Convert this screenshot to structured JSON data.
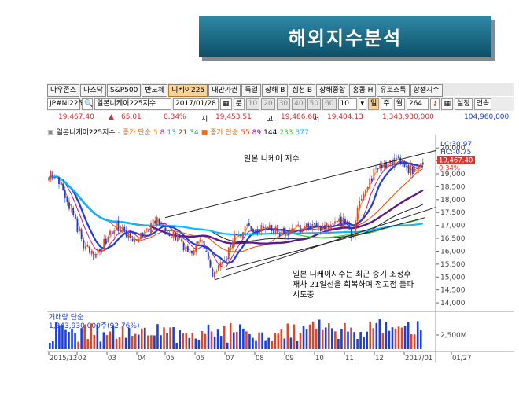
{
  "slide_title": "해외지수분석",
  "tabs": [
    "다우존스",
    "나스닥",
    "S&P500",
    "반도체",
    "니케이225",
    "대만가권",
    "독일",
    "상해 B",
    "심천 B",
    "상해종합",
    "홍콩 H",
    "유로스톡",
    "항셍지수"
  ],
  "active_tab": 4,
  "toolbar": {
    "symbol": "JP#NI225",
    "name": "일본니케이225지수",
    "date": "2017/01/28",
    "unit_label": "분",
    "intervals": [
      "10",
      "20",
      "30",
      "40",
      "50",
      "60"
    ],
    "count": "10",
    "period_day": "일",
    "period_week": "주",
    "period_month": "월",
    "bars": "264",
    "settings": "설정",
    "continuous": "연속"
  },
  "quote": {
    "price": "19,467.40",
    "change": "65.01",
    "change_pct": "0.34%",
    "open_label": "시",
    "open": "19,453.51",
    "high_label": "고",
    "high": "19,486.68",
    "low_label": "저",
    "low": "19,404.13",
    "volume": "1,343,930,000",
    "volume_right": "104,960,000"
  },
  "legend": {
    "name": "일본니케이225지수",
    "ma_short_label": "종가 단순",
    "ma_short": [
      "5",
      "8",
      "13",
      "21",
      "34"
    ],
    "ma_long_label": "종가 단순",
    "ma_long": [
      "55",
      "89",
      "144",
      "233",
      "377"
    ]
  },
  "annotations": {
    "top": "일본 니케이 지수",
    "bottom_lines": [
      "일본 니케이지수는 최근 중기 조정후",
      "재차 21일선을 회복하며 전고점 돌파",
      "시도중"
    ]
  },
  "right_header": {
    "lc": "LC:30.97",
    "hc": "HC:-0.75"
  },
  "current_tag": {
    "price": "19,467.40",
    "pct": "0.34%"
  },
  "volume_panel": {
    "label": "거래량 단순",
    "value": "1,343,930,000주(92,76%)",
    "axis_label": "2,500M"
  },
  "colors": {
    "up": "#e0462c",
    "down": "#1d3fd6",
    "title_bg": "#1a6f8b"
  },
  "chart_data": {
    "type": "candlestick",
    "title": "",
    "y_ticks": [
      14000,
      14500,
      15000,
      15500,
      16000,
      16500,
      17000,
      17500,
      18000,
      18500,
      19000,
      19500,
      20000
    ],
    "y_tick_labels": [
      "14,000",
      "14,500",
      "15,000",
      "15,500",
      "16,000",
      "16,500",
      "17,000",
      "17,500",
      "18,000",
      "18,500",
      "19,000",
      "19,500",
      "20,000"
    ],
    "ylim": [
      13850,
      20250
    ],
    "x_labels": [
      "2015/12",
      "02",
      "03",
      "04",
      "05",
      "06",
      "07",
      "08",
      "09",
      "10",
      "11",
      "12",
      "2017/01",
      "01/27"
    ],
    "close_path": [
      [
        0,
        19000
      ],
      [
        12,
        18800
      ],
      [
        24,
        18100
      ],
      [
        36,
        17100
      ],
      [
        46,
        16300
      ],
      [
        58,
        15800
      ],
      [
        72,
        16300
      ],
      [
        86,
        17000
      ],
      [
        100,
        16700
      ],
      [
        116,
        16400
      ],
      [
        128,
        16900
      ],
      [
        140,
        17200
      ],
      [
        152,
        16700
      ],
      [
        166,
        16500
      ],
      [
        180,
        16000
      ],
      [
        196,
        16400
      ],
      [
        210,
        15100
      ],
      [
        224,
        15500
      ],
      [
        236,
        16500
      ],
      [
        246,
        16600
      ],
      [
        254,
        16900
      ],
      [
        262,
        16700
      ],
      [
        272,
        16900
      ],
      [
        282,
        16900
      ],
      [
        296,
        16700
      ],
      [
        310,
        16800
      ],
      [
        326,
        16900
      ],
      [
        340,
        16900
      ],
      [
        354,
        16900
      ],
      [
        368,
        17200
      ],
      [
        380,
        17100
      ],
      [
        388,
        16300
      ],
      [
        394,
        17800
      ],
      [
        406,
        18400
      ],
      [
        418,
        19200
      ],
      [
        432,
        19400
      ],
      [
        446,
        19500
      ],
      [
        460,
        19200
      ],
      [
        472,
        19100
      ],
      [
        478,
        19440
      ]
    ],
    "trendline_upper": [
      [
        150,
        17300
      ],
      [
        494,
        19900
      ]
    ],
    "trendline_lower": [
      [
        214,
        14900
      ],
      [
        494,
        17700
      ]
    ],
    "trendline_lower2": [
      [
        228,
        15300
      ],
      [
        480,
        17300
      ]
    ],
    "volume_bars": 118
  }
}
